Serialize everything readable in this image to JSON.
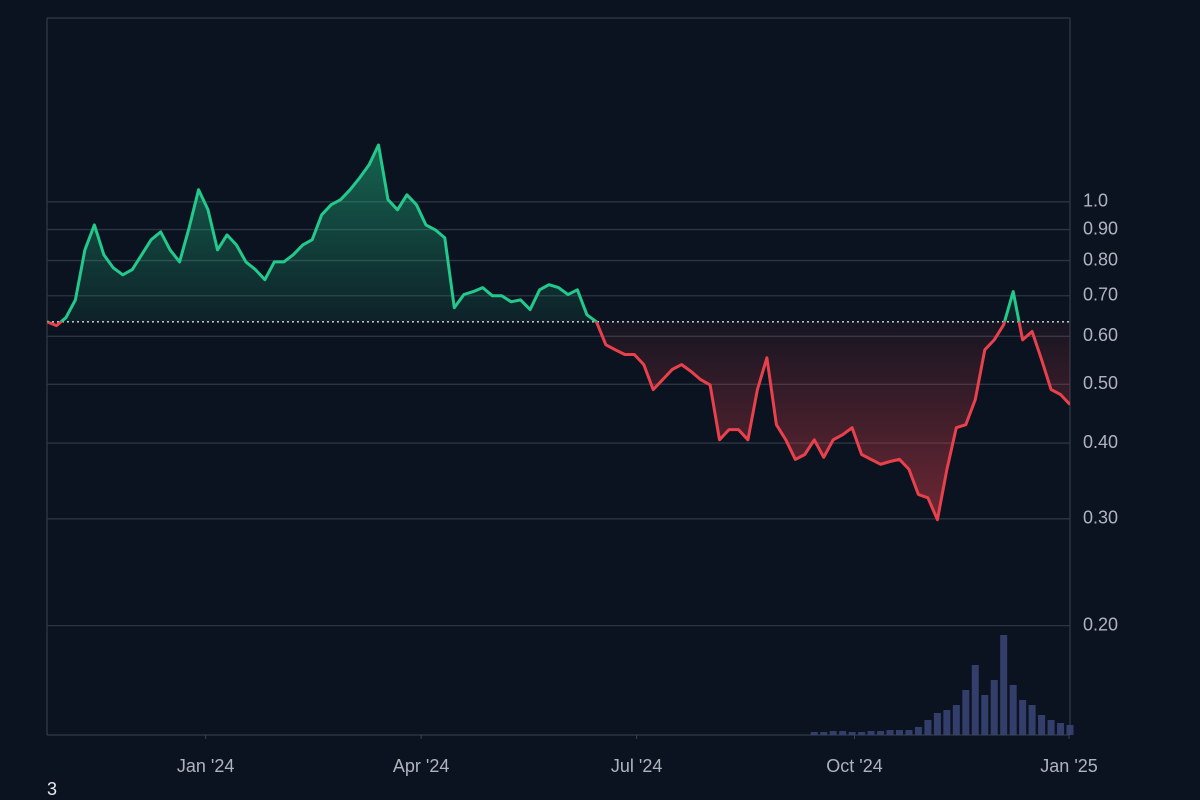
{
  "chart_data": {
    "type": "line",
    "log_scale": true,
    "grid": true,
    "up_color": "#22c98b",
    "down_color": "#e8414c",
    "volume_color": "#3b4778",
    "baseline": 0.634,
    "xlim": [
      0,
      108
    ],
    "xticks": [
      {
        "value": 16.75,
        "label": "Jan '24"
      },
      {
        "value": 39.5,
        "label": "Apr '24"
      },
      {
        "value": 62.25,
        "label": "Jul '24"
      },
      {
        "value": 85.25,
        "label": "Oct '24"
      },
      {
        "value": 107.9,
        "label": "Jan '25"
      }
    ],
    "ylim": [
      0.132,
      2.01
    ],
    "yticks": [
      {
        "value": 1.0,
        "label": "1.0"
      },
      {
        "value": 0.9,
        "label": "0.90"
      },
      {
        "value": 0.8,
        "label": "0.80"
      },
      {
        "value": 0.7,
        "label": "0.70"
      },
      {
        "value": 0.6,
        "label": "0.60"
      },
      {
        "value": 0.5,
        "label": "0.50"
      },
      {
        "value": 0.4,
        "label": "0.40"
      },
      {
        "value": 0.3,
        "label": "0.30"
      },
      {
        "value": 0.2,
        "label": "0.20"
      }
    ],
    "values": [
      0.634,
      0.625,
      0.644,
      0.689,
      0.833,
      0.916,
      0.818,
      0.778,
      0.758,
      0.773,
      0.818,
      0.866,
      0.892,
      0.833,
      0.796,
      0.906,
      1.047,
      0.97,
      0.833,
      0.882,
      0.849,
      0.796,
      0.773,
      0.744,
      0.796,
      0.796,
      0.818,
      0.849,
      0.866,
      0.952,
      0.989,
      1.008,
      1.047,
      1.095,
      1.151,
      1.241,
      1.008,
      0.97,
      1.027,
      0.989,
      0.916,
      0.899,
      0.872,
      0.669,
      0.703,
      0.711,
      0.722,
      0.7,
      0.7,
      0.684,
      0.689,
      0.664,
      0.716,
      0.73,
      0.722,
      0.703,
      0.716,
      0.651,
      0.634,
      0.581,
      0.57,
      0.56,
      0.56,
      0.539,
      0.49,
      0.509,
      0.529,
      0.539,
      0.525,
      0.509,
      0.499,
      0.405,
      0.421,
      0.421,
      0.405,
      0.49,
      0.553,
      0.429,
      0.405,
      0.376,
      0.383,
      0.405,
      0.379,
      0.405,
      0.413,
      0.424,
      0.383,
      0.376,
      0.369,
      0.373,
      0.376,
      0.362,
      0.329,
      0.325,
      0.299,
      0.362,
      0.424,
      0.429,
      0.472,
      0.57,
      0.592,
      0.627,
      0.711,
      0.592,
      0.611,
      0.549,
      0.49,
      0.481,
      0.463
    ],
    "volume": [
      0,
      0,
      0,
      0,
      0,
      0,
      0,
      0,
      0,
      0,
      0,
      0,
      0,
      0,
      0,
      0,
      0,
      0,
      0,
      0,
      0,
      0,
      0,
      0,
      0,
      0,
      0,
      0,
      0,
      0,
      0,
      0,
      0,
      0,
      0,
      0,
      0,
      0,
      0,
      0,
      0,
      0,
      0,
      0,
      0,
      0,
      0,
      0,
      0,
      0,
      0,
      0,
      0,
      0,
      0,
      0,
      0,
      0,
      0,
      0,
      0,
      0,
      0,
      0,
      0,
      0,
      0,
      0,
      0,
      0,
      0,
      0,
      0,
      0,
      0,
      0,
      0,
      0,
      0,
      0,
      0,
      3,
      3,
      4,
      4,
      3,
      3,
      4,
      4,
      5,
      5,
      5,
      8,
      15,
      22,
      25,
      30,
      45,
      70,
      40,
      55,
      100,
      50,
      35,
      30,
      20,
      15,
      12,
      10
    ],
    "footnote": "3"
  }
}
